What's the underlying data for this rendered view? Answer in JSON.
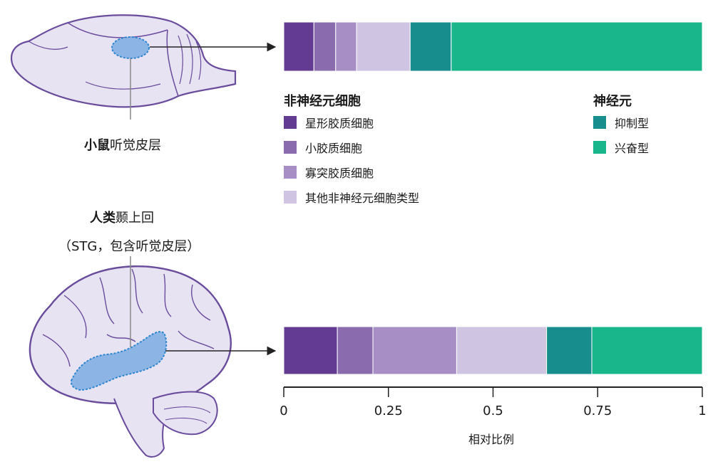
{
  "mouse_label": {
    "bold": "小鼠",
    "rest": "听觉皮层"
  },
  "human_label": {
    "bold": "人类",
    "rest": "颞上回",
    "sub": "（STG，包含听觉皮层）"
  },
  "legend": {
    "non_neuron_title": "非神经元细胞",
    "non_neuron_items": [
      {
        "label": "星形胶质细胞",
        "color": "#643b93"
      },
      {
        "label": "小胶质细胞",
        "color": "#8a6cae"
      },
      {
        "label": "寡突胶质细胞",
        "color": "#a78fc6"
      },
      {
        "label": "其他非神经元细胞类型",
        "color": "#cfc4e2"
      }
    ],
    "neuron_title": "神经元",
    "neuron_items": [
      {
        "label": "抑制型",
        "color": "#178d8d"
      },
      {
        "label": "兴奋型",
        "color": "#18b68a"
      }
    ]
  },
  "chart_data": {
    "type": "bar",
    "orientation": "horizontal-stacked",
    "xlabel": "相对比例",
    "xlim": [
      0,
      1
    ],
    "ticks": [
      0,
      0.25,
      0.5,
      0.75,
      1
    ],
    "tick_labels": [
      "0",
      "0.25",
      "0.5",
      "0.75",
      "1"
    ],
    "categories": [
      "小鼠听觉皮层",
      "人类颞上回"
    ],
    "series": [
      {
        "name": "星形胶质细胞",
        "color": "#643b93",
        "values": [
          0.072,
          0.128
        ]
      },
      {
        "name": "小胶质细胞",
        "color": "#8a6cae",
        "values": [
          0.052,
          0.085
        ]
      },
      {
        "name": "寡突胶质细胞",
        "color": "#a78fc6",
        "values": [
          0.05,
          0.2
        ]
      },
      {
        "name": "其他非神经元细胞类型",
        "color": "#cfc4e2",
        "values": [
          0.128,
          0.215
        ]
      },
      {
        "name": "抑制型",
        "color": "#178d8d",
        "values": [
          0.098,
          0.108
        ]
      },
      {
        "name": "兴奋型",
        "color": "#18b68a",
        "values": [
          0.6,
          0.264
        ]
      }
    ]
  }
}
